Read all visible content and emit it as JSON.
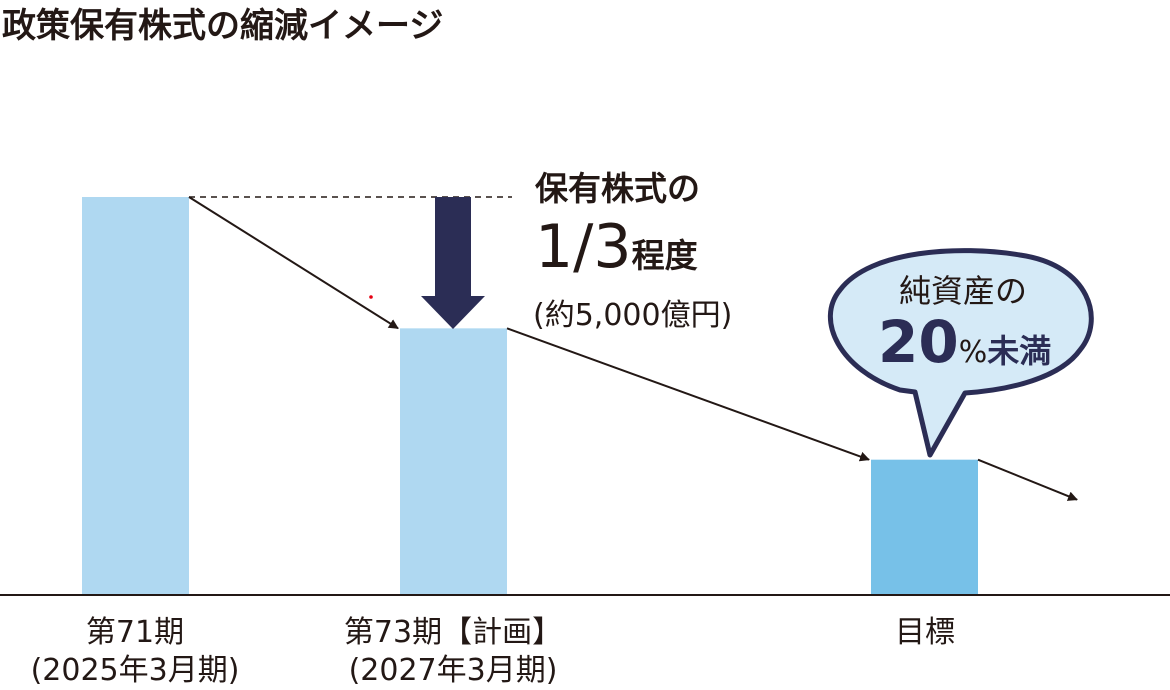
{
  "title": "政策保有株式の縮減イメージ",
  "colors": {
    "bar_light": "#afd8f1",
    "bar_target": "#77c1e8",
    "navy": "#2b2d55",
    "bubble_fill": "#d5eaf7",
    "line": "#231815"
  },
  "chart_data": {
    "type": "bar",
    "title": "政策保有株式の縮減イメージ",
    "categories": [
      "第71期\n(2025年3月期)",
      "第73期【計画】\n(2027年3月期)",
      "目標"
    ],
    "category_lines": [
      [
        "第71期",
        "(2025年3月期)"
      ],
      [
        "第73期【計画】",
        "(2027年3月期)"
      ],
      [
        "目標"
      ]
    ],
    "values_relative": [
      100,
      67,
      34
    ],
    "axis_values_printed": false,
    "grid": false,
    "annotations": {
      "reduction_line1": "保有株式の",
      "reduction_big": "1/3",
      "reduction_suffix": "程度",
      "reduction_note": "(約5,000億円)",
      "bubble_line1": "純資産の",
      "bubble_num": "20",
      "bubble_pct": "%",
      "bubble_suffix": "未満"
    }
  }
}
